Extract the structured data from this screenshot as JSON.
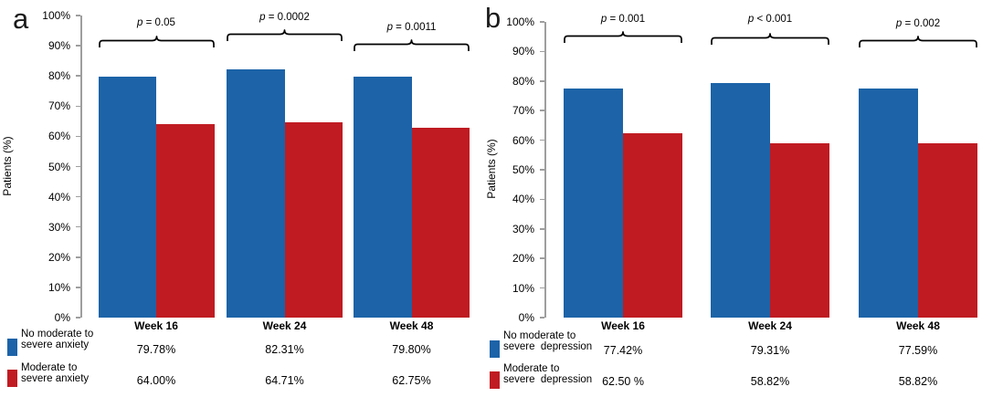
{
  "figure_type": "two-panel grouped bar chart",
  "colors": {
    "blue": "#1C63A8",
    "red": "#C01B22",
    "axis": "#9E9E9E",
    "bracket": "#000000",
    "text": "#000000"
  },
  "chart_data": [
    {
      "type": "bar",
      "panel_label": "a",
      "ylabel": "Patients (%)",
      "ylim": [
        0,
        100
      ],
      "ytick_labels": [
        "0%",
        "10%",
        "20%",
        "30%",
        "40%",
        "50%",
        "60%",
        "70%",
        "80%",
        "90%",
        "100%"
      ],
      "grid": false,
      "legend_position": "bottom-left",
      "categories": [
        "Week 16",
        "Week 24",
        "Week 48"
      ],
      "p_values": [
        "p = 0.05",
        "p = 0.0002",
        "p = 0.0011"
      ],
      "series": [
        {
          "name": "No moderate to severe anxiety",
          "legend_lines": [
            "No moderate to",
            "severe anxiety"
          ],
          "color": "#1C63A8",
          "values": [
            79.78,
            82.31,
            79.8
          ],
          "value_labels": [
            "79.78%",
            "82.31%",
            "79.80%"
          ]
        },
        {
          "name": "Moderate to severe anxiety",
          "legend_lines": [
            "Moderate to",
            "severe anxiety"
          ],
          "color": "#C01B22",
          "values": [
            64.0,
            64.71,
            62.75
          ],
          "value_labels": [
            "64.00%",
            "64.71%",
            "62.75%"
          ]
        }
      ]
    },
    {
      "type": "bar",
      "panel_label": "b",
      "ylabel": "Patients (%)",
      "ylim": [
        0,
        100
      ],
      "ytick_labels": [
        "0%",
        "10%",
        "20%",
        "30%",
        "40%",
        "50%",
        "60%",
        "70%",
        "80%",
        "90%",
        "100%"
      ],
      "grid": false,
      "legend_position": "bottom-left",
      "categories": [
        "Week 16",
        "Week 24",
        "Week 48"
      ],
      "p_values": [
        "p = 0.001",
        "p < 0.001",
        "p = 0.002"
      ],
      "series": [
        {
          "name": "No moderate to severe depression",
          "legend_lines": [
            "No moderate to",
            "severe  depression"
          ],
          "color": "#1C63A8",
          "values": [
            77.42,
            79.31,
            77.59
          ],
          "value_labels": [
            "77.42%",
            "79.31%",
            "77.59%"
          ]
        },
        {
          "name": "Moderate to severe depression",
          "legend_lines": [
            "Moderate to",
            "severe  depression"
          ],
          "color": "#C01B22",
          "values": [
            62.5,
            58.82,
            58.82
          ],
          "value_labels": [
            "62.50 %",
            "58.82%",
            "58.82%"
          ]
        }
      ]
    }
  ]
}
